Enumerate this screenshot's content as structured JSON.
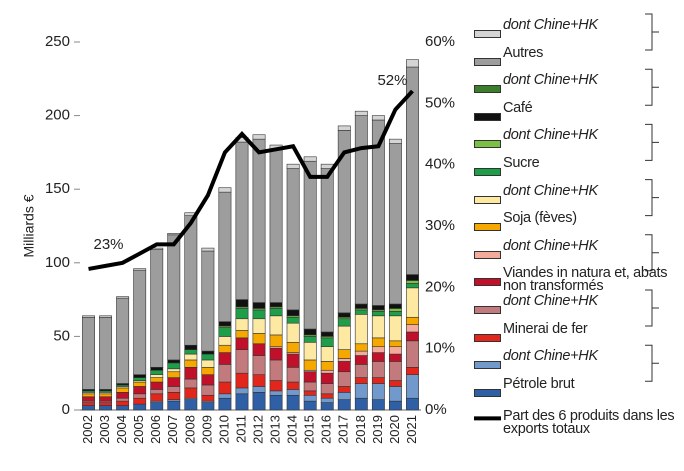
{
  "chart_data": {
    "type": "bar",
    "stacked": true,
    "y_label": "Milliards €",
    "annotations": [
      "23%",
      "52%"
    ],
    "categories": [
      "2002",
      "2003",
      "2004",
      "2005",
      "2006",
      "2007",
      "2008",
      "2009",
      "2010",
      "2011",
      "2012",
      "2013",
      "2014",
      "2015",
      "2016",
      "2017",
      "2018",
      "2019",
      "2020",
      "2021"
    ],
    "ylim": [
      0,
      250
    ],
    "yticks": [
      0,
      50,
      100,
      150,
      200,
      250
    ],
    "y2lim": [
      0,
      60
    ],
    "y2ticks": [
      {
        "value": 0,
        "label": "0%"
      },
      {
        "value": 10,
        "label": "10%"
      },
      {
        "value": 20,
        "label": "20%"
      },
      {
        "value": 30,
        "label": "30%"
      },
      {
        "value": 40,
        "label": "40%"
      },
      {
        "value": 50,
        "label": "50%"
      },
      {
        "value": 60,
        "label": "60%"
      }
    ],
    "grid": false,
    "series": [
      {
        "name": "Pétrole brut",
        "color": "#2f5fa5",
        "values": [
          3,
          3,
          3,
          4,
          5,
          6,
          7,
          5,
          8,
          11,
          12,
          10,
          10,
          6,
          5,
          7,
          8,
          7,
          6,
          8
        ]
      },
      {
        "name": "dont Chine+HK",
        "color": "#7199cb",
        "values": [
          0,
          0,
          0,
          0,
          1,
          1,
          1,
          1,
          3,
          4,
          4,
          3,
          4,
          4,
          3,
          5,
          10,
          11,
          10,
          16
        ]
      },
      {
        "name": "Minerai de fer",
        "color": "#e3261c",
        "values": [
          2,
          2,
          3,
          4,
          5,
          5,
          7,
          4,
          8,
          10,
          8,
          7,
          5,
          3,
          3,
          4,
          4,
          4,
          4,
          5
        ]
      },
      {
        "name": "dont Chine+HK",
        "color": "#c27a7c",
        "values": [
          1,
          1,
          2,
          3,
          3,
          4,
          6,
          7,
          12,
          16,
          13,
          14,
          10,
          6,
          7,
          10,
          9,
          11,
          13,
          18
        ]
      },
      {
        "name": "Viandes in natura  et, abats non transformés",
        "color": "#c0102a",
        "values": [
          3,
          3,
          4,
          5,
          5,
          6,
          8,
          7,
          8,
          8,
          8,
          8,
          9,
          7,
          7,
          7,
          6,
          6,
          5,
          6
        ]
      },
      {
        "name": "dont Chine+HK",
        "color": "#f5ab9c",
        "values": [
          0,
          0,
          0,
          0,
          0,
          0,
          0,
          0,
          0,
          0,
          0,
          1,
          1,
          1,
          2,
          2,
          3,
          4,
          5,
          5
        ]
      },
      {
        "name": "Soja (fèves)",
        "color": "#f5a800",
        "values": [
          2,
          2,
          3,
          3,
          3,
          4,
          5,
          5,
          5,
          5,
          7,
          8,
          7,
          7,
          6,
          6,
          5,
          6,
          4,
          5
        ]
      },
      {
        "name": "dont Chine+HK",
        "color": "#fde9a2",
        "values": [
          1,
          1,
          1,
          1,
          2,
          2,
          4,
          5,
          6,
          8,
          10,
          13,
          13,
          12,
          10,
          16,
          20,
          15,
          17,
          20
        ]
      },
      {
        "name": "Sucre",
        "color": "#1f9e4a",
        "values": [
          1,
          1,
          1,
          2,
          3,
          4,
          3,
          4,
          6,
          7,
          6,
          5,
          4,
          4,
          6,
          5,
          3,
          3,
          3,
          3
        ]
      },
      {
        "name": "dont Chine+HK",
        "color": "#7cc043",
        "values": [
          0,
          0,
          0,
          0,
          0,
          0,
          0,
          0,
          1,
          1,
          1,
          1,
          1,
          1,
          1,
          1,
          1,
          1,
          2,
          2
        ]
      },
      {
        "name": "Café",
        "color": "#111111",
        "values": [
          1,
          1,
          1,
          2,
          2,
          2,
          3,
          2,
          3,
          5,
          4,
          3,
          4,
          4,
          3,
          3,
          3,
          3,
          3,
          4
        ]
      },
      {
        "name": "dont Chine+HK",
        "color": "#3b7f2d",
        "values": [
          0,
          0,
          0,
          0,
          0,
          0,
          0,
          0,
          0,
          0,
          0,
          0,
          0,
          0,
          0,
          0,
          0,
          0,
          0,
          0
        ]
      },
      {
        "name": "Autres",
        "color": "#9d9d9d",
        "values": [
          49,
          49,
          58,
          71,
          80,
          85,
          88,
          68,
          88,
          107,
          111,
          104,
          96,
          114,
          111,
          124,
          128,
          126,
          109,
          141
        ]
      },
      {
        "name": "dont Chine+HK",
        "color": "#d4d4d4",
        "values": [
          1,
          1,
          1,
          1,
          1,
          1,
          2,
          2,
          3,
          3,
          3,
          3,
          3,
          3,
          3,
          3,
          3,
          3,
          3,
          5
        ]
      },
      {
        "name": "Part des 6 produits dans les exports totaux",
        "color": "#000000",
        "type": "line",
        "axis": "y2",
        "values": [
          23,
          23.5,
          24,
          25.5,
          27,
          27,
          30.5,
          35,
          42,
          45,
          42,
          42.5,
          43,
          38,
          38,
          42,
          42.7,
          43,
          49,
          52
        ]
      }
    ]
  }
}
